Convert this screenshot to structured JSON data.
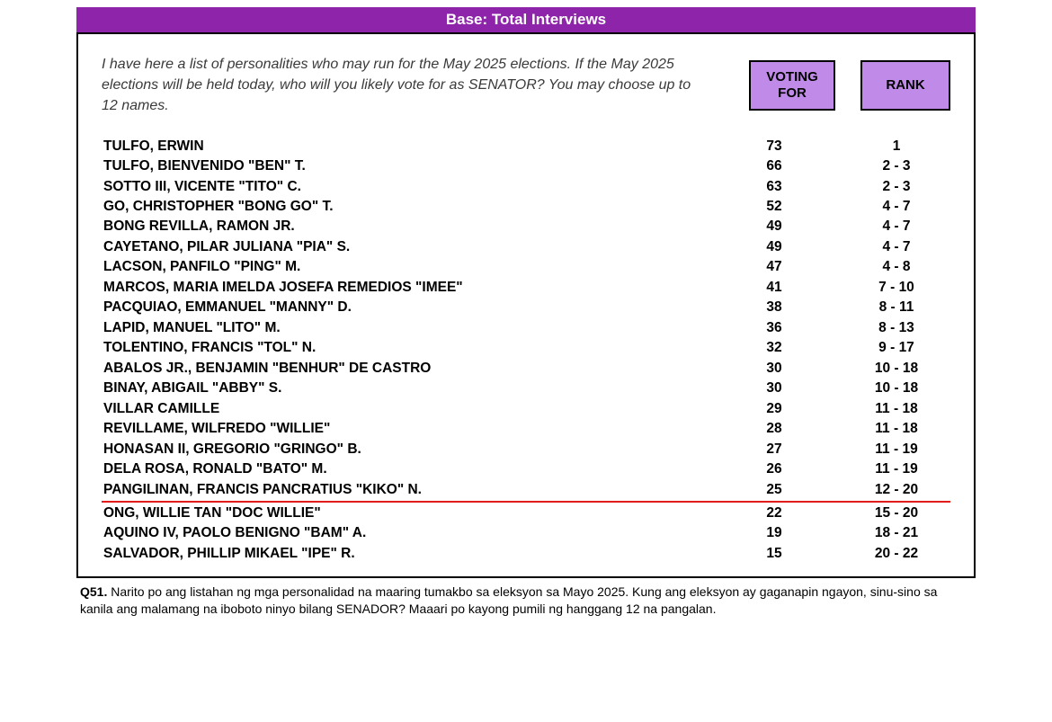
{
  "title_bar": "Base: Total Interviews",
  "question_text": "I have here a list of personalities who may run for the May 2025 elections. If the May 2025 elections will be held today, who will you likely vote for as SENATOR? You may choose up to 12 names.",
  "headers": {
    "voting": "VOTING FOR",
    "rank": "RANK"
  },
  "colors": {
    "title_bg": "#8e24aa",
    "header_bg": "#c08ae8",
    "underline": "#e21b1b",
    "border": "#000000",
    "text": "#000000"
  },
  "rows": [
    {
      "name": "TULFO, ERWIN",
      "voting": "73",
      "rank": "1"
    },
    {
      "name": "TULFO, BIENVENIDO \"BEN\" T.",
      "voting": "66",
      "rank": "2 - 3"
    },
    {
      "name": "SOTTO III, VICENTE \"TITO\" C.",
      "voting": "63",
      "rank": "2 - 3"
    },
    {
      "name": "GO, CHRISTOPHER \"BONG GO\" T.",
      "voting": "52",
      "rank": "4 - 7"
    },
    {
      "name": "BONG REVILLA, RAMON JR.",
      "voting": "49",
      "rank": "4 - 7"
    },
    {
      "name": "CAYETANO, PILAR JULIANA \"PIA\" S.",
      "voting": "49",
      "rank": "4 - 7"
    },
    {
      "name": "LACSON, PANFILO \"PING\" M.",
      "voting": "47",
      "rank": "4 - 8"
    },
    {
      "name": "MARCOS, MARIA IMELDA JOSEFA REMEDIOS \"IMEE\"",
      "voting": "41",
      "rank": "7 - 10"
    },
    {
      "name": "PACQUIAO, EMMANUEL \"MANNY\" D.",
      "voting": "38",
      "rank": "8 - 11"
    },
    {
      "name": "LAPID, MANUEL \"LITO\" M.",
      "voting": "36",
      "rank": "8 - 13"
    },
    {
      "name": "TOLENTINO, FRANCIS \"TOL\" N.",
      "voting": "32",
      "rank": "9 - 17"
    },
    {
      "name": "ABALOS JR., BENJAMIN \"BENHUR\" DE CASTRO",
      "voting": "30",
      "rank": "10 - 18"
    },
    {
      "name": "BINAY, ABIGAIL \"ABBY\" S.",
      "voting": "30",
      "rank": "10 - 18"
    },
    {
      "name": "VILLAR CAMILLE",
      "voting": "29",
      "rank": "11 - 18"
    },
    {
      "name": "REVILLAME, WILFREDO \"WILLIE\"",
      "voting": "28",
      "rank": "11 - 18"
    },
    {
      "name": "HONASAN II, GREGORIO \"GRINGO\" B.",
      "voting": "27",
      "rank": "11 - 19"
    },
    {
      "name": "DELA ROSA, RONALD \"BATO\" M.",
      "voting": "26",
      "rank": "11 - 19"
    },
    {
      "name": "PANGILINAN, FRANCIS PANCRATIUS \"KIKO\" N.",
      "voting": "25",
      "rank": "12 - 20"
    },
    {
      "name": "ONG, WILLIE TAN \"DOC WILLIE\"",
      "voting": "22",
      "rank": "15 - 20"
    },
    {
      "name": "AQUINO IV, PAOLO BENIGNO \"BAM\" A.",
      "voting": "19",
      "rank": "18 - 21"
    },
    {
      "name": "SALVADOR, PHILLIP MIKAEL \"IPE\" R.",
      "voting": "15",
      "rank": "20 - 22"
    }
  ],
  "underline_after_index": 17,
  "footnote": {
    "label": "Q51.",
    "text": "Narito po ang listahan ng mga personalidad na maaring tumakbo sa eleksyon sa Mayo 2025. Kung ang eleksyon ay gaganapin ngayon, sinu-sino sa kanila ang malamang na iboboto ninyo bilang SENADOR?  Maaari po kayong pumili ng hanggang 12 na pangalan."
  }
}
